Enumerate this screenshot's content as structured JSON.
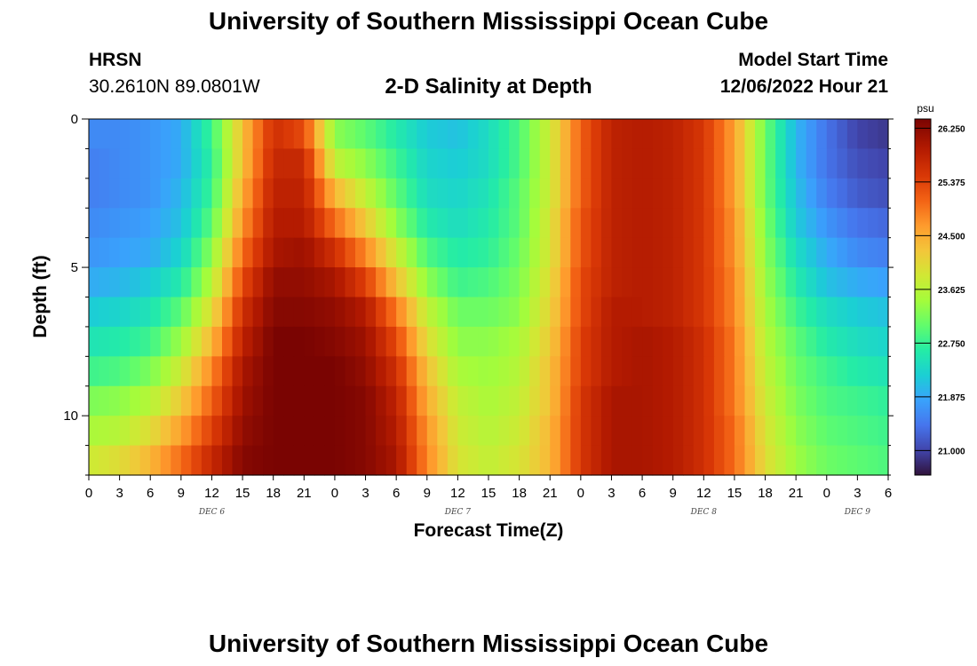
{
  "header": {
    "title": "University of Southern Mississippi Ocean Cube",
    "station": "HRSN",
    "coords": "30.2610N  89.0801W",
    "subtitle": "2-D Salinity at Depth",
    "model_label": "Model Start Time",
    "model_time": "12/06/2022 Hour 21"
  },
  "footer": {
    "title": "University of Southern Mississippi Ocean Cube"
  },
  "chart_data": {
    "type": "heatmap",
    "xlabel": "Forecast Time(Z)",
    "ylabel": "Depth (ft)",
    "x_tick_labels": [
      "0",
      "3",
      "6",
      "9",
      "12",
      "15",
      "18",
      "21",
      "0",
      "3",
      "6",
      "9",
      "12",
      "15",
      "18",
      "21",
      "0",
      "3",
      "6",
      "9",
      "12",
      "15",
      "18",
      "21",
      "0",
      "3",
      "6"
    ],
    "day_labels": [
      "DEC 6",
      "DEC 7",
      "DEC 8",
      "DEC 9"
    ],
    "xlim_hours": [
      0,
      78
    ],
    "y_tick_labels": [
      "0",
      "5",
      "10"
    ],
    "ylim": [
      0,
      12
    ],
    "colorbar": {
      "unit": "psu",
      "ticks": [
        "26.250",
        "25.375",
        "24.500",
        "23.625",
        "22.750",
        "21.875",
        "21.000"
      ],
      "range": [
        20.6,
        26.4
      ]
    },
    "grid": false,
    "depth_levels_ft": [
      0.5,
      1.5,
      2.5,
      3.5,
      4.5,
      5.5,
      6.5,
      7.5,
      8.5,
      9.5,
      10.5,
      11.5
    ],
    "hour_keys": [
      0,
      3,
      6,
      9,
      12,
      15,
      18,
      21,
      24,
      27,
      30,
      33,
      36,
      39,
      42,
      45,
      48,
      51,
      54,
      57,
      60,
      63,
      66,
      69,
      72,
      75,
      78
    ],
    "salinity_psu": [
      [
        21.6,
        21.6,
        21.7,
        21.9,
        22.8,
        24.3,
        25.6,
        25.3,
        23.3,
        23.0,
        22.6,
        22.2,
        22.1,
        22.4,
        22.9,
        23.8,
        25.1,
        25.8,
        25.9,
        25.8,
        25.5,
        24.6,
        23.1,
        22.0,
        21.4,
        21.0,
        20.9
      ],
      [
        21.5,
        21.6,
        21.7,
        21.9,
        22.7,
        24.3,
        25.7,
        25.7,
        23.7,
        23.3,
        22.8,
        22.3,
        22.2,
        22.4,
        22.9,
        23.8,
        25.1,
        25.8,
        25.9,
        25.8,
        25.5,
        24.6,
        23.1,
        22.0,
        21.4,
        21.1,
        21.0
      ],
      [
        21.5,
        21.6,
        21.7,
        22.0,
        22.8,
        24.5,
        25.8,
        25.8,
        24.4,
        23.7,
        23.0,
        22.4,
        22.3,
        22.5,
        23.0,
        23.8,
        25.1,
        25.8,
        25.9,
        25.8,
        25.5,
        24.6,
        23.1,
        22.1,
        21.5,
        21.2,
        21.1
      ],
      [
        21.6,
        21.7,
        21.8,
        22.1,
        23.0,
        24.7,
        25.9,
        25.9,
        25.0,
        24.2,
        23.3,
        22.6,
        22.4,
        22.6,
        23.0,
        23.9,
        25.2,
        25.8,
        25.9,
        25.8,
        25.5,
        24.7,
        23.2,
        22.2,
        21.7,
        21.4,
        21.3
      ],
      [
        21.7,
        21.8,
        21.9,
        22.3,
        23.3,
        25.0,
        26.0,
        26.1,
        25.6,
        24.8,
        23.8,
        22.9,
        22.6,
        22.7,
        23.1,
        23.9,
        25.2,
        25.8,
        25.9,
        25.8,
        25.5,
        24.7,
        23.3,
        22.4,
        21.9,
        21.6,
        21.5
      ],
      [
        21.9,
        22.0,
        22.2,
        22.6,
        23.6,
        25.3,
        26.2,
        26.2,
        26.0,
        25.4,
        24.3,
        23.3,
        22.8,
        22.9,
        23.2,
        24.0,
        25.3,
        25.8,
        25.9,
        25.8,
        25.5,
        24.8,
        23.4,
        22.6,
        22.1,
        21.9,
        21.8
      ],
      [
        22.2,
        22.3,
        22.5,
        23.0,
        24.0,
        25.6,
        26.3,
        26.3,
        26.2,
        25.9,
        24.9,
        23.7,
        23.1,
        23.1,
        23.3,
        24.1,
        25.3,
        25.9,
        25.9,
        25.8,
        25.5,
        24.8,
        23.5,
        22.8,
        22.4,
        22.2,
        22.1
      ],
      [
        22.5,
        22.6,
        22.8,
        23.4,
        24.4,
        25.8,
        26.4,
        26.4,
        26.3,
        26.1,
        25.3,
        24.0,
        23.3,
        23.3,
        23.5,
        24.2,
        25.4,
        25.9,
        26.0,
        25.9,
        25.6,
        24.9,
        23.6,
        23.0,
        22.6,
        22.4,
        22.3
      ],
      [
        22.8,
        22.9,
        23.2,
        23.8,
        24.8,
        26.0,
        26.4,
        26.4,
        26.4,
        26.2,
        25.6,
        24.3,
        23.5,
        23.4,
        23.6,
        24.3,
        25.4,
        25.9,
        26.0,
        25.9,
        25.6,
        24.9,
        23.7,
        23.1,
        22.8,
        22.6,
        22.5
      ],
      [
        23.2,
        23.3,
        23.6,
        24.2,
        25.1,
        26.1,
        26.4,
        26.4,
        26.4,
        26.3,
        25.8,
        24.5,
        23.7,
        23.5,
        23.7,
        24.3,
        25.5,
        26.0,
        26.0,
        25.9,
        25.6,
        24.9,
        23.8,
        23.2,
        22.9,
        22.8,
        22.7
      ],
      [
        23.5,
        23.6,
        24.0,
        24.6,
        25.4,
        26.2,
        26.4,
        26.4,
        26.4,
        26.3,
        25.9,
        24.7,
        23.8,
        23.6,
        23.8,
        24.4,
        25.5,
        26.0,
        26.0,
        25.9,
        25.6,
        25.0,
        23.9,
        23.3,
        23.0,
        22.9,
        22.8
      ],
      [
        23.8,
        24.0,
        24.4,
        25.0,
        25.7,
        26.3,
        26.4,
        26.4,
        26.4,
        26.3,
        26.0,
        24.8,
        23.9,
        23.7,
        23.9,
        24.4,
        25.5,
        26.0,
        26.0,
        25.9,
        25.6,
        25.0,
        24.0,
        23.4,
        23.1,
        23.0,
        22.9
      ]
    ]
  }
}
